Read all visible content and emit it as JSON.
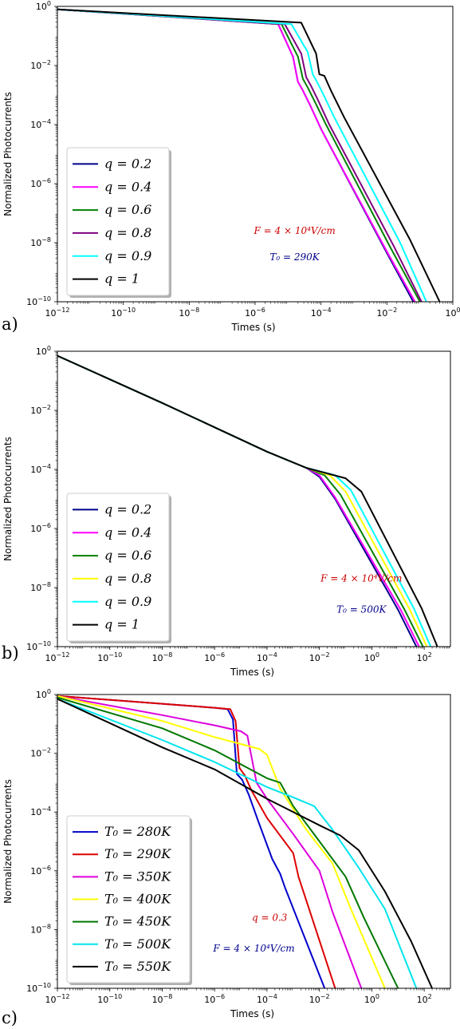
{
  "chart_data": [
    {
      "panel": "a)",
      "type": "line",
      "xlabel": "Times (s)",
      "ylabel": "Normalized Photocurrents",
      "x_scale": "log",
      "y_scale": "log",
      "xlim_exp": [
        -12,
        0
      ],
      "ylim_exp": [
        -10,
        0
      ],
      "x_ticks": [
        {
          "b": "10",
          "e": "−12"
        },
        {
          "b": "10",
          "e": "−10"
        },
        {
          "b": "10",
          "e": "−8"
        },
        {
          "b": "10",
          "e": "−6"
        },
        {
          "b": "10",
          "e": "−4"
        },
        {
          "b": "10",
          "e": "−2"
        },
        {
          "b": "10",
          "e": "0"
        }
      ],
      "y_ticks": [
        {
          "b": "10",
          "e": "−10"
        },
        {
          "b": "10",
          "e": "−8"
        },
        {
          "b": "10",
          "e": "−6"
        },
        {
          "b": "10",
          "e": "−4"
        },
        {
          "b": "10",
          "e": "−2"
        },
        {
          "b": "10",
          "e": "0"
        }
      ],
      "legend_position": "lower-left",
      "annotations": [
        {
          "text": "F = 4 × 10⁴V/cm",
          "color": "#cc0000",
          "log_x": -4.8,
          "log_y": -7.7
        },
        {
          "text": "T₀ = 290K",
          "color": "#00008b",
          "log_x": -4.8,
          "log_y": -8.6
        }
      ],
      "series": [
        {
          "name": "q = 0.2",
          "color": "#00008b",
          "log_points": [
            [
              -12,
              -0.1
            ],
            [
              -5.3,
              -0.6
            ],
            [
              -4.85,
              -1.7
            ],
            [
              -4.7,
              -2.55
            ],
            [
              -4.55,
              -2.85
            ],
            [
              -4.35,
              -3.3
            ],
            [
              -4.0,
              -4.15
            ],
            [
              -2,
              -8.35
            ],
            [
              -1.2,
              -10
            ]
          ]
        },
        {
          "name": "q = 0.4",
          "color": "#ff00ff",
          "log_points": [
            [
              -12,
              -0.1
            ],
            [
              -5.3,
              -0.6
            ],
            [
              -4.85,
              -1.7
            ],
            [
              -4.7,
              -2.55
            ],
            [
              -4.55,
              -2.85
            ],
            [
              -4.35,
              -3.3
            ],
            [
              -4.0,
              -4.15
            ],
            [
              -2,
              -8.3
            ],
            [
              -1.15,
              -10
            ]
          ]
        },
        {
          "name": "q = 0.6",
          "color": "#008000",
          "log_points": [
            [
              -12,
              -0.1
            ],
            [
              -5.2,
              -0.6
            ],
            [
              -4.7,
              -1.7
            ],
            [
              -4.55,
              -2.45
            ],
            [
              -4.4,
              -2.75
            ],
            [
              -4.2,
              -3.2
            ],
            [
              -3.85,
              -4.0
            ],
            [
              -1.9,
              -8.15
            ],
            [
              -1.0,
              -10
            ]
          ]
        },
        {
          "name": "q = 0.8",
          "color": "#800080",
          "log_points": [
            [
              -12,
              -0.1
            ],
            [
              -5.1,
              -0.6
            ],
            [
              -4.6,
              -1.6
            ],
            [
              -4.45,
              -2.4
            ],
            [
              -4.3,
              -2.7
            ],
            [
              -4.1,
              -3.15
            ],
            [
              -3.75,
              -4.0
            ],
            [
              -1.8,
              -8.1
            ],
            [
              -0.95,
              -10
            ]
          ]
        },
        {
          "name": "q = 0.9",
          "color": "#00ffff",
          "log_points": [
            [
              -12,
              -0.1
            ],
            [
              -4.9,
              -0.6
            ],
            [
              -4.4,
              -1.55
            ],
            [
              -4.25,
              -2.3
            ],
            [
              -4.1,
              -2.6
            ],
            [
              -3.9,
              -3.05
            ],
            [
              -3.6,
              -3.75
            ],
            [
              -1.6,
              -8.0
            ],
            [
              -0.8,
              -10
            ]
          ]
        },
        {
          "name": "q = 1",
          "color": "#000000",
          "log_points": [
            [
              -12,
              -0.1
            ],
            [
              -4.6,
              -0.55
            ],
            [
              -4.15,
              -1.6
            ],
            [
              -4.05,
              -2.3
            ],
            [
              -3.9,
              -2.35
            ],
            [
              -3.7,
              -2.85
            ],
            [
              -3.3,
              -3.75
            ],
            [
              -1.3,
              -7.9
            ],
            [
              -0.4,
              -10
            ]
          ]
        }
      ]
    },
    {
      "panel": "b)",
      "type": "line",
      "xlabel": "Times (s)",
      "ylabel": "Normalized Photocurrents",
      "x_scale": "log",
      "y_scale": "log",
      "xlim_exp": [
        -12,
        3
      ],
      "ylim_exp": [
        -10,
        0
      ],
      "x_ticks": [
        {
          "b": "10",
          "e": "−12"
        },
        {
          "b": "10",
          "e": "−10"
        },
        {
          "b": "10",
          "e": "−8"
        },
        {
          "b": "10",
          "e": "−6"
        },
        {
          "b": "10",
          "e": "−4"
        },
        {
          "b": "10",
          "e": "−2"
        },
        {
          "b": "10",
          "e": "0"
        },
        {
          "b": "10",
          "e": "2"
        }
      ],
      "y_ticks": [
        {
          "b": "10",
          "e": "−10"
        },
        {
          "b": "10",
          "e": "−8"
        },
        {
          "b": "10",
          "e": "−6"
        },
        {
          "b": "10",
          "e": "−4"
        },
        {
          "b": "10",
          "e": "−2"
        },
        {
          "b": "10",
          "e": "0"
        }
      ],
      "legend_position": "lower-left",
      "annotations": [
        {
          "text": "F = 4 × 10⁴V/cm",
          "color": "#cc0000",
          "log_x": -0.4,
          "log_y": -7.8
        },
        {
          "text": "T₀ = 500K",
          "color": "#00008b",
          "log_x": -0.4,
          "log_y": -8.85
        }
      ],
      "series": [
        {
          "name": "q = 0.2",
          "color": "#00008b",
          "log_points": [
            [
              -12,
              -0.15
            ],
            [
              -8,
              -1.75
            ],
            [
              -4,
              -3.4
            ],
            [
              -2.5,
              -3.95
            ],
            [
              -2,
              -4.25
            ],
            [
              -1.4,
              -5.0
            ],
            [
              1,
              -8.75
            ],
            [
              1.7,
              -10
            ]
          ]
        },
        {
          "name": "q = 0.4",
          "color": "#ff00ff",
          "log_points": [
            [
              -12,
              -0.15
            ],
            [
              -8,
              -1.75
            ],
            [
              -4,
              -3.4
            ],
            [
              -2.5,
              -3.95
            ],
            [
              -2,
              -4.2
            ],
            [
              -1.4,
              -4.95
            ],
            [
              1.1,
              -8.75
            ],
            [
              1.8,
              -10
            ]
          ]
        },
        {
          "name": "q = 0.6",
          "color": "#008000",
          "log_points": [
            [
              -12,
              -0.15
            ],
            [
              -8,
              -1.75
            ],
            [
              -4,
              -3.4
            ],
            [
              -2.5,
              -3.95
            ],
            [
              -1.8,
              -4.2
            ],
            [
              -1.2,
              -4.85
            ],
            [
              1.25,
              -8.75
            ],
            [
              1.95,
              -10
            ]
          ]
        },
        {
          "name": "q = 0.8",
          "color": "#ffff00",
          "log_points": [
            [
              -12,
              -0.15
            ],
            [
              -8,
              -1.75
            ],
            [
              -4,
              -3.4
            ],
            [
              -2.5,
              -3.95
            ],
            [
              -1.6,
              -4.2
            ],
            [
              -1.0,
              -4.75
            ],
            [
              1.45,
              -8.75
            ],
            [
              2.1,
              -10
            ]
          ]
        },
        {
          "name": "q = 0.9",
          "color": "#00ffff",
          "log_points": [
            [
              -12,
              -0.15
            ],
            [
              -8,
              -1.75
            ],
            [
              -4,
              -3.4
            ],
            [
              -2.5,
              -3.95
            ],
            [
              -1.4,
              -4.2
            ],
            [
              -0.8,
              -4.7
            ],
            [
              1.6,
              -8.7
            ],
            [
              2.25,
              -10
            ]
          ]
        },
        {
          "name": "q = 1",
          "color": "#000000",
          "log_points": [
            [
              -12,
              -0.15
            ],
            [
              -8,
              -1.75
            ],
            [
              -4,
              -3.4
            ],
            [
              -2.5,
              -3.95
            ],
            [
              -1.0,
              -4.3
            ],
            [
              -0.4,
              -4.75
            ],
            [
              1.9,
              -8.7
            ],
            [
              2.5,
              -10
            ]
          ]
        }
      ]
    },
    {
      "panel": "c)",
      "type": "line",
      "xlabel": "Times (s)",
      "ylabel": "Normalized Photocurrents",
      "x_scale": "log",
      "y_scale": "log",
      "xlim_exp": [
        -12,
        3
      ],
      "ylim_exp": [
        -10,
        0
      ],
      "x_ticks": [
        {
          "b": "10",
          "e": "−12"
        },
        {
          "b": "10",
          "e": "−10"
        },
        {
          "b": "10",
          "e": "−8"
        },
        {
          "b": "10",
          "e": "−6"
        },
        {
          "b": "10",
          "e": "−4"
        },
        {
          "b": "10",
          "e": "−2"
        },
        {
          "b": "10",
          "e": "0"
        },
        {
          "b": "10",
          "e": "2"
        }
      ],
      "y_ticks": [
        {
          "b": "10",
          "e": "−10"
        },
        {
          "b": "10",
          "e": "−8"
        },
        {
          "b": "10",
          "e": "−6"
        },
        {
          "b": "10",
          "e": "−4"
        },
        {
          "b": "10",
          "e": "−2"
        },
        {
          "b": "10",
          "e": "0"
        }
      ],
      "legend_position": "lower-left",
      "annotations": [
        {
          "text": "q = 0.3",
          "color": "#cc0000",
          "log_x": -3.9,
          "log_y": -7.7
        },
        {
          "text": "F = 4 × 10⁴V/cm",
          "color": "#00008b",
          "log_x": -4.5,
          "log_y": -8.75
        }
      ],
      "series": [
        {
          "name": "T₀ = 280K",
          "color": "#0000cc",
          "log_points": [
            [
              -12,
              -0.05
            ],
            [
              -6,
              -0.45
            ],
            [
              -5.5,
              -0.5
            ],
            [
              -5.3,
              -0.85
            ],
            [
              -5.15,
              -2.7
            ],
            [
              -4.95,
              -2.9
            ],
            [
              -4.7,
              -3.4
            ],
            [
              -4.3,
              -4.4
            ],
            [
              -3.8,
              -5.6
            ],
            [
              -3.5,
              -6.1
            ],
            [
              -3.3,
              -6.6
            ],
            [
              -1.8,
              -10
            ]
          ]
        },
        {
          "name": "T₀ = 290K",
          "color": "#dd0000",
          "log_points": [
            [
              -12,
              -0.05
            ],
            [
              -6,
              -0.45
            ],
            [
              -5.4,
              -0.5
            ],
            [
              -5.2,
              -0.9
            ],
            [
              -5.05,
              -2.5
            ],
            [
              -4.85,
              -2.75
            ],
            [
              -4.6,
              -3.25
            ],
            [
              -4.0,
              -4.2
            ],
            [
              -3.0,
              -5.4
            ],
            [
              -2.8,
              -6.2
            ],
            [
              -1.4,
              -10
            ]
          ]
        },
        {
          "name": "T₀ = 350K",
          "color": "#dd00dd",
          "log_points": [
            [
              -12,
              -0.05
            ],
            [
              -8,
              -0.7
            ],
            [
              -6,
              -1.05
            ],
            [
              -5.0,
              -1.25
            ],
            [
              -4.75,
              -1.4
            ],
            [
              -4.4,
              -3.0
            ],
            [
              -4.0,
              -3.55
            ],
            [
              -3.0,
              -4.75
            ],
            [
              -2.0,
              -6.0
            ],
            [
              -1.5,
              -7.4
            ],
            [
              -0.4,
              -10
            ]
          ]
        },
        {
          "name": "T₀ = 400K",
          "color": "#ffff00",
          "log_points": [
            [
              -12,
              -0.05
            ],
            [
              -8,
              -0.9
            ],
            [
              -6,
              -1.45
            ],
            [
              -4.3,
              -1.85
            ],
            [
              -4.0,
              -2.05
            ],
            [
              -3.5,
              -3.2
            ],
            [
              -2.5,
              -4.6
            ],
            [
              -1.5,
              -5.75
            ],
            [
              -0.8,
              -7.3
            ],
            [
              0.5,
              -10
            ]
          ]
        },
        {
          "name": "T₀ = 450K",
          "color": "#007700",
          "log_points": [
            [
              -12,
              -0.1
            ],
            [
              -8,
              -1.15
            ],
            [
              -6,
              -1.9
            ],
            [
              -4.0,
              -2.85
            ],
            [
              -3.5,
              -3.0
            ],
            [
              -3.0,
              -3.8
            ],
            [
              -2.0,
              -5.0
            ],
            [
              -1.0,
              -6.2
            ],
            [
              -0.3,
              -7.6
            ],
            [
              1.0,
              -10
            ]
          ]
        },
        {
          "name": "T₀ = 500K",
          "color": "#00e5ee",
          "log_points": [
            [
              -12,
              -0.15
            ],
            [
              -8,
              -1.55
            ],
            [
              -6,
              -2.3
            ],
            [
              -4,
              -3.15
            ],
            [
              -3.0,
              -3.5
            ],
            [
              -2.2,
              -3.8
            ],
            [
              -1.5,
              -4.6
            ],
            [
              -0.5,
              -5.9
            ],
            [
              0.5,
              -7.3
            ],
            [
              1.7,
              -10
            ]
          ]
        },
        {
          "name": "T₀ = 550K",
          "color": "#000000",
          "log_points": [
            [
              -12,
              -0.15
            ],
            [
              -8,
              -1.8
            ],
            [
              -6,
              -2.55
            ],
            [
              -4,
              -3.55
            ],
            [
              -2,
              -4.45
            ],
            [
              -1.2,
              -4.8
            ],
            [
              -0.5,
              -5.3
            ],
            [
              0.5,
              -6.7
            ],
            [
              1.5,
              -8.4
            ],
            [
              2.3,
              -10
            ]
          ]
        }
      ]
    }
  ]
}
